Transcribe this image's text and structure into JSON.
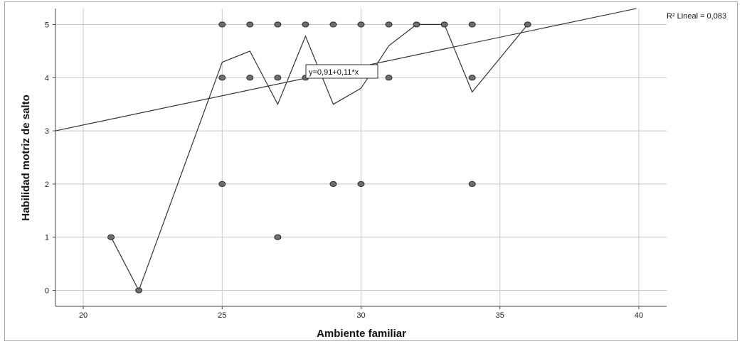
{
  "chart_data": {
    "type": "scatter",
    "title": "",
    "xlabel": "Ambiente familiar",
    "ylabel": "Habilidad motriz de salto",
    "xlim": [
      19,
      41
    ],
    "ylim": [
      -0.3,
      5.3
    ],
    "x_ticks": [
      20,
      25,
      30,
      35,
      40
    ],
    "y_ticks": [
      0,
      1,
      2,
      3,
      4,
      5
    ],
    "grid": true,
    "points": [
      {
        "x": 21,
        "y": 1
      },
      {
        "x": 22,
        "y": 0
      },
      {
        "x": 25,
        "y": 5
      },
      {
        "x": 25,
        "y": 4
      },
      {
        "x": 25,
        "y": 2
      },
      {
        "x": 26,
        "y": 5
      },
      {
        "x": 26,
        "y": 4
      },
      {
        "x": 27,
        "y": 5
      },
      {
        "x": 27,
        "y": 4
      },
      {
        "x": 27,
        "y": 1
      },
      {
        "x": 28,
        "y": 5
      },
      {
        "x": 28,
        "y": 4
      },
      {
        "x": 29,
        "y": 5
      },
      {
        "x": 29,
        "y": 2
      },
      {
        "x": 30,
        "y": 5
      },
      {
        "x": 30,
        "y": 2
      },
      {
        "x": 31,
        "y": 5
      },
      {
        "x": 31,
        "y": 4
      },
      {
        "x": 32,
        "y": 5
      },
      {
        "x": 33,
        "y": 5
      },
      {
        "x": 34,
        "y": 5
      },
      {
        "x": 34,
        "y": 4
      },
      {
        "x": 34,
        "y": 2
      },
      {
        "x": 36,
        "y": 5
      }
    ],
    "mean_line": {
      "x": [
        21,
        22,
        25,
        26,
        27,
        28,
        29,
        30,
        31,
        32,
        33,
        34,
        36
      ],
      "y": [
        1,
        0,
        4.29,
        4.5,
        3.5,
        4.78,
        3.5,
        3.8,
        4.6,
        5,
        5,
        3.73,
        5
      ]
    },
    "fit_line": {
      "intercept": 0.91,
      "slope": 0.11,
      "equation_label": "y=0,91+0,11*x",
      "r2_label": "R² Lineal = 0,083"
    },
    "colors": {
      "point_fill": "#6e6e6e",
      "point_stroke": "#2a2a2a",
      "line": "#333333",
      "grid": "#c8c8c8"
    }
  }
}
